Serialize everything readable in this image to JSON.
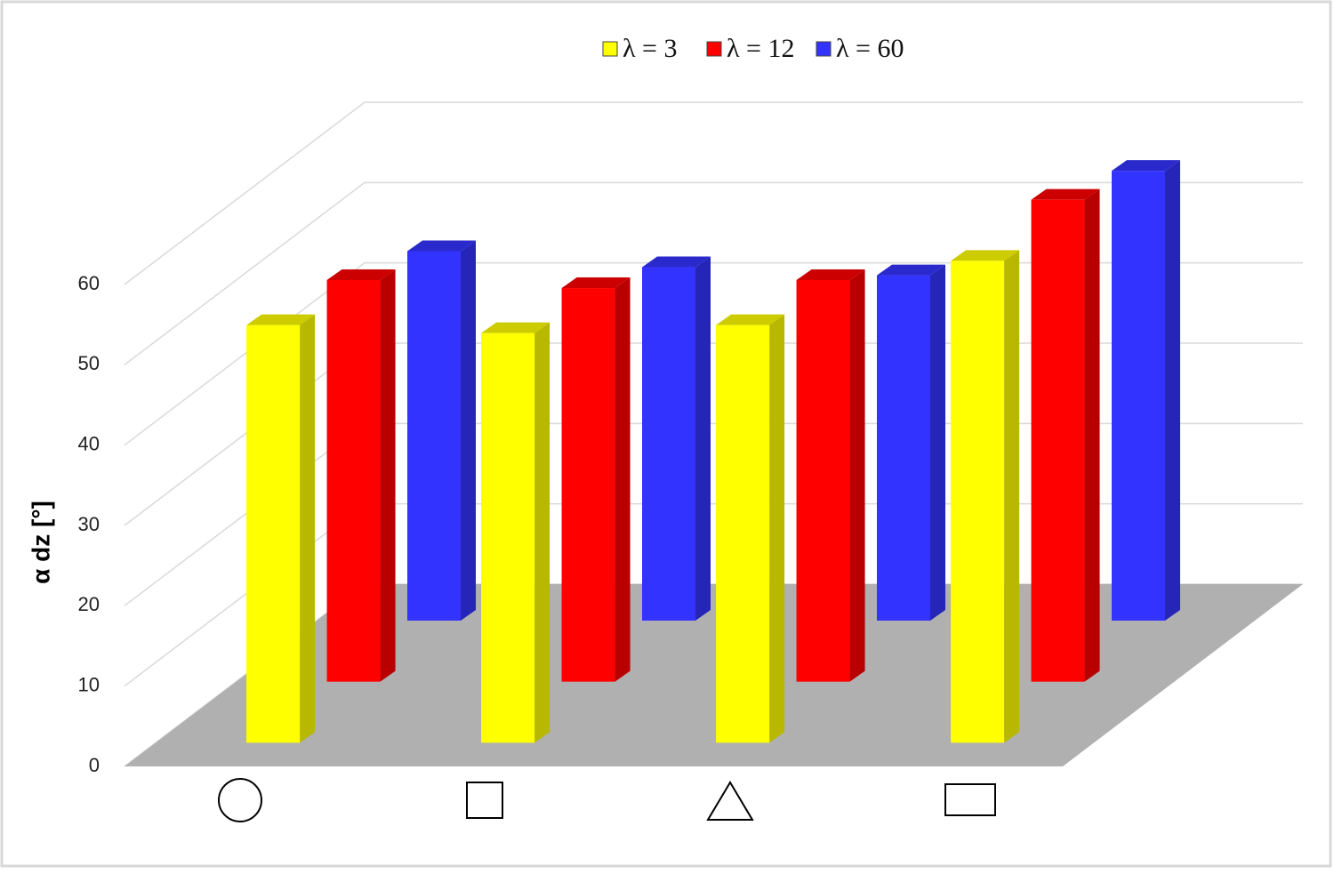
{
  "chart_data": {
    "type": "bar3d",
    "y_label": "α dz [°]",
    "categories": [
      null,
      null,
      null,
      null
    ],
    "series": [
      {
        "name": "λ = 3",
        "color": "#ffff00",
        "values": [
          52,
          51,
          52,
          60
        ]
      },
      {
        "name": "λ = 12",
        "color": "#ff0000",
        "values": [
          50,
          49,
          50,
          60
        ]
      },
      {
        "name": "λ = 60",
        "color": "#3333ff",
        "values": [
          46,
          44,
          43,
          56
        ]
      }
    ],
    "ylim": [
      0,
      60
    ],
    "yticks": [
      0,
      10,
      20,
      30,
      40,
      50,
      60
    ],
    "grid": true
  }
}
